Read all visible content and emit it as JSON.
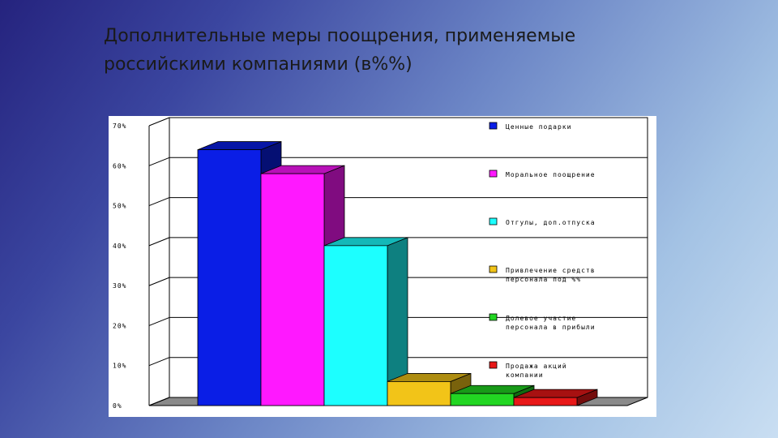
{
  "slide": {
    "title_line1": "Дополнительные меры поощрения, применяемые",
    "title_line2": "российскими компаниями (в%%)"
  },
  "chart_data": {
    "type": "bar",
    "title": "",
    "xlabel": "",
    "ylabel": "",
    "ylim": [
      0,
      70
    ],
    "y_ticks": [
      0,
      10,
      20,
      30,
      40,
      50,
      60,
      70
    ],
    "y_tick_labels": [
      "0%",
      "10%",
      "20%",
      "30%",
      "40%",
      "50%",
      "60%",
      "70%"
    ],
    "grid": true,
    "three_d": true,
    "legend_position": "right",
    "series": [
      {
        "name": "Ценные подарки",
        "value": 64,
        "color": "#0a1ee6"
      },
      {
        "name": "Моральное поощрение",
        "value": 58,
        "color": "#ff18ff"
      },
      {
        "name": "Отгулы, доп.отпуска",
        "value": 40,
        "color": "#1cffff"
      },
      {
        "name": "Привлечение средств персонала под %%",
        "value": 6,
        "color": "#f2c418"
      },
      {
        "name": "Долевое участие персонала в прибыли",
        "value": 3,
        "color": "#22d622"
      },
      {
        "name": "Продажа акций компании",
        "value": 2,
        "color": "#e81818"
      }
    ],
    "legend": [
      [
        "Ценные подарки"
      ],
      [
        "Моральное поощрение"
      ],
      [
        "Отгулы, доп.отпуска"
      ],
      [
        "Привлечение средств",
        "персонала под %%"
      ],
      [
        "Долевое участие",
        "персонала в прибыли"
      ],
      [
        "Продажа акций",
        "компании"
      ]
    ]
  }
}
